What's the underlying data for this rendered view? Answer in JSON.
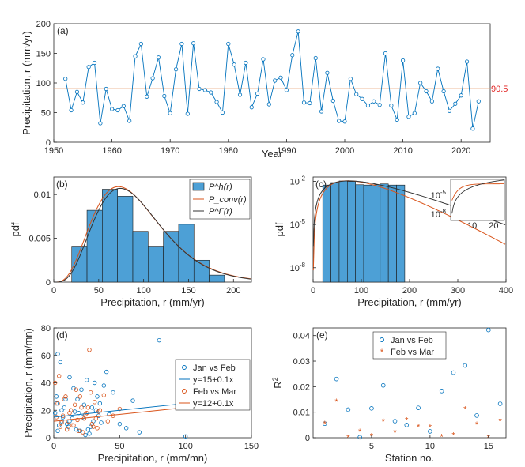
{
  "colors": {
    "blue": "#0072BD",
    "orange": "#D95319",
    "bar": "#4DA0D6",
    "pink": "#EDB120",
    "red": "#E0201F",
    "dark": "#333333"
  },
  "chart_data": [
    {
      "panel": "(a)",
      "type": "line",
      "xlabel": "Year",
      "ylabel": "Precipitation, r (mm/yr)",
      "xlim": [
        1950,
        2025
      ],
      "ylim": [
        0,
        200
      ],
      "xticks": [
        1950,
        1960,
        1970,
        1980,
        1990,
        2000,
        2010,
        2020
      ],
      "yticks": [
        0,
        50,
        100,
        150,
        200
      ],
      "hline_value": 90.5,
      "hline_label": "90.5",
      "x": [
        1952,
        1953,
        1954,
        1955,
        1956,
        1957,
        1958,
        1959,
        1960,
        1961,
        1962,
        1963,
        1964,
        1965,
        1966,
        1967,
        1968,
        1969,
        1970,
        1971,
        1972,
        1973,
        1974,
        1975,
        1976,
        1977,
        1978,
        1979,
        1980,
        1981,
        1982,
        1983,
        1984,
        1985,
        1986,
        1987,
        1988,
        1989,
        1990,
        1991,
        1992,
        1993,
        1994,
        1995,
        1996,
        1997,
        1998,
        1999,
        2000,
        2001,
        2002,
        2003,
        2004,
        2005,
        2006,
        2007,
        2008,
        2009,
        2010,
        2011,
        2012,
        2013,
        2014,
        2015,
        2016,
        2017,
        2018,
        2019,
        2020,
        2021,
        2022,
        2023
      ],
      "y": [
        107,
        54,
        85,
        67,
        127,
        134,
        32,
        90,
        56,
        54,
        61,
        36,
        145,
        166,
        77,
        108,
        143,
        78,
        49,
        123,
        166,
        48,
        167,
        90,
        88,
        84,
        68,
        50,
        166,
        131,
        80,
        134,
        59,
        82,
        140,
        64,
        104,
        109,
        88,
        147,
        187,
        67,
        66,
        142,
        52,
        117,
        70,
        36,
        35,
        107,
        81,
        73,
        62,
        69,
        63,
        150,
        62,
        38,
        138,
        43,
        49,
        100,
        86,
        69,
        124,
        86,
        53,
        65,
        79,
        136,
        23,
        69
      ],
      "series_line_end": 90.5
    },
    {
      "panel": "(b)",
      "type": "bar",
      "xlabel": "Precipitation, r (mm/yr)",
      "ylabel": "pdf",
      "xlim": [
        0,
        220
      ],
      "ylim": [
        0,
        0.012
      ],
      "xticks": [
        0,
        50,
        100,
        150,
        200
      ],
      "yticks_labels": [
        "0",
        "0.005",
        "0.01"
      ],
      "yticks": [
        0,
        0.005,
        0.01
      ],
      "bin_edges": [
        20,
        37,
        54,
        71,
        88,
        105,
        122,
        139,
        156,
        173,
        190
      ],
      "values": [
        0.0041,
        0.0082,
        0.0106,
        0.0098,
        0.0058,
        0.0041,
        0.0058,
        0.0066,
        0.0025,
        0.0008
      ],
      "legend": [
        "P^h(r)",
        "P_conv(r)",
        "P^Γ(r)"
      ],
      "curve_mode": 72,
      "curve_peak": 0.0109
    },
    {
      "panel": "(c)",
      "type": "bar",
      "scale": "log",
      "xlabel": "Precipitation, r (mm/yr)",
      "ylabel": "pdf",
      "xlim": [
        0,
        400
      ],
      "xticks": [
        0,
        100,
        200,
        300,
        400
      ],
      "ytick_labels": [
        "10",
        "10",
        "10"
      ],
      "ytick_exps": [
        "-8",
        "-5",
        "-2"
      ],
      "inset_xticks": [
        10,
        20
      ],
      "inset_ytick_labels": [
        "10",
        "10"
      ],
      "inset_ytick_exps": [
        "-5",
        "-8"
      ]
    },
    {
      "panel": "(d)",
      "type": "scatter",
      "xlabel": "Precipitation, r (mm/mn)",
      "ylabel": "Precipitation, r (mm/mn)",
      "xlim": [
        0,
        150
      ],
      "ylim": [
        0,
        80
      ],
      "xticks": [
        0,
        50,
        100,
        150
      ],
      "yticks": [
        0,
        20,
        40,
        60,
        80
      ],
      "series": [
        {
          "name": "Jan vs Feb",
          "x": [
            1,
            2,
            3,
            5,
            6,
            8,
            10,
            12,
            15,
            18,
            20,
            22,
            25,
            28,
            30,
            33,
            35,
            40,
            45,
            50,
            55,
            60,
            65,
            80,
            100,
            3,
            7,
            12,
            17,
            23,
            27,
            32,
            38,
            4,
            9,
            14,
            19,
            24,
            29,
            34,
            2,
            6,
            11,
            16,
            21,
            26,
            31,
            36,
            42
          ],
          "y": [
            18,
            30,
            61,
            55,
            20,
            22,
            10,
            44,
            36,
            28,
            5,
            15,
            42,
            8,
            12,
            30,
            25,
            48,
            33,
            10,
            7,
            27,
            4,
            71,
            1,
            5,
            15,
            12,
            6,
            24,
            3,
            20,
            38,
            9,
            28,
            14,
            18,
            2,
            22,
            16,
            25,
            12,
            8,
            19,
            35,
            6,
            40,
            11,
            17
          ]
        },
        {
          "name": "Feb vs Mar",
          "x": [
            1,
            3,
            5,
            7,
            9,
            11,
            13,
            15,
            17,
            19,
            21,
            23,
            25,
            27,
            29,
            31,
            33,
            35,
            38,
            41,
            45,
            50,
            2,
            4,
            6,
            8,
            10,
            12,
            14,
            16,
            18,
            20,
            22,
            24,
            26,
            28,
            30,
            32,
            34
          ],
          "y": [
            40,
            25,
            8,
            16,
            30,
            12,
            20,
            9,
            35,
            5,
            22,
            14,
            18,
            64,
            10,
            26,
            7,
            20,
            31,
            12,
            16,
            21,
            15,
            45,
            11,
            28,
            6,
            18,
            9,
            24,
            13,
            30,
            4,
            17,
            22,
            33,
            8,
            14,
            19
          ]
        }
      ],
      "fit_lines": [
        "y=15+0.1x",
        "y=12+0.1x"
      ],
      "fit_params": [
        [
          15,
          0.1
        ],
        [
          12,
          0.1
        ]
      ],
      "legend": [
        "Jan vs Feb",
        "y=15+0.1x",
        "Feb vs Mar",
        "y=12+0.1x"
      ]
    },
    {
      "panel": "(e)",
      "type": "scatter",
      "xlabel": "Station no.",
      "ylabel": "R^2",
      "xlim": [
        0,
        16.5
      ],
      "ylim": [
        0,
        0.043
      ],
      "xticks": [
        5,
        10,
        15
      ],
      "yticks": [
        0,
        0.01,
        0.02,
        0.03,
        0.04
      ],
      "series": [
        {
          "name": "Jan vs Feb",
          "x": [
            1,
            2,
            3,
            4,
            5,
            6,
            7,
            8,
            9,
            10,
            11,
            12,
            13,
            14,
            15,
            16
          ],
          "y": [
            0.0055,
            0.023,
            0.011,
            0.0002,
            0.0115,
            0.0205,
            0.0065,
            0.005,
            0.0117,
            0.0025,
            0.0183,
            0.0255,
            0.0283,
            0.0087,
            0.0422,
            0.0133
          ]
        },
        {
          "name": "Feb vs Mar",
          "x": [
            1,
            2,
            3,
            4,
            5,
            6,
            7,
            8,
            9,
            10,
            11,
            12,
            13,
            14,
            15,
            16
          ],
          "y": [
            0.0055,
            0.0143,
            0.0002,
            0.0025,
            0.0008,
            0.0065,
            0.0022,
            0.007,
            0.0043,
            0.0041,
            0.0004,
            0.0011,
            0.0113,
            0.0052,
            0.0002,
            0.0067
          ]
        }
      ],
      "legend": [
        "Jan vs Feb",
        "Feb vs Mar"
      ]
    }
  ],
  "panel_labels": [
    "(a)",
    "(b)",
    "(c)",
    "(d)",
    "(e)"
  ]
}
